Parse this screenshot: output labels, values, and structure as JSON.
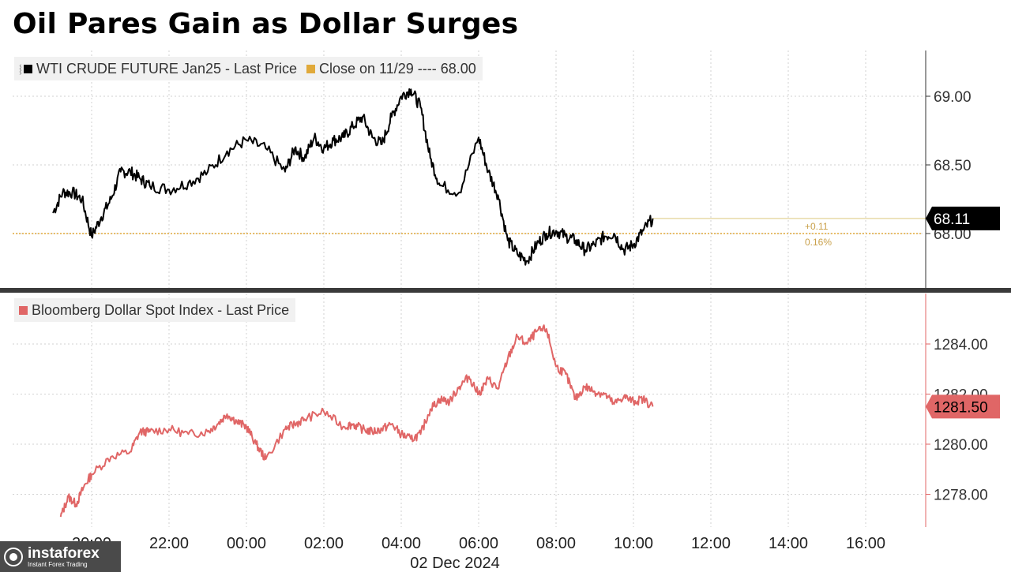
{
  "title": "Oil Pares Gain as Dollar Surges",
  "x_axis": {
    "tick_labels": [
      "20:00",
      "22:00",
      "00:00",
      "02:00",
      "04:00",
      "06:00",
      "08:00",
      "10:00",
      "12:00",
      "14:00",
      "16:00"
    ],
    "date_label": "02 Dec 2024"
  },
  "colors": {
    "oil": "#000000",
    "close_ref": "#e0a93a",
    "dollar": "#e06666",
    "grid": "#cfcfcf"
  },
  "chart_data": [
    {
      "type": "line",
      "panel": "top",
      "legend": [
        {
          "label": "WTI CRUDE FUTURE Jan25 - Last Price",
          "color": "#000000",
          "icon": "pin-icon"
        },
        {
          "label": "Close on 11/29 ---- 68.00",
          "color": "#e0a93a"
        }
      ],
      "ylim": [
        67.55,
        69.3
      ],
      "yticks": [
        "69.00",
        "68.50",
        "68.00"
      ],
      "last_value_label": "68.11",
      "change_labels": [
        "+0.11",
        "0.16%"
      ],
      "reference_line": {
        "name": "Close on 11/29",
        "value": 68.0
      },
      "series": [
        {
          "x": [
            -1.0,
            -0.75,
            -0.5,
            -0.25,
            0.0,
            0.25,
            0.5,
            0.75,
            1.0,
            1.25,
            1.5,
            2.0,
            2.5,
            3.0,
            3.5,
            4.0,
            4.5,
            5.0,
            5.25,
            5.5,
            5.75,
            6.0,
            6.25,
            6.5,
            6.75,
            7.0,
            7.25,
            7.5,
            7.75,
            8.0,
            8.25,
            8.5,
            8.75,
            9.0,
            9.5,
            10.0,
            10.25,
            10.5,
            10.75,
            11.0,
            11.25,
            11.5,
            11.75,
            12.0,
            12.25,
            12.5,
            12.75,
            13.0,
            13.25,
            13.5,
            13.75,
            14.0,
            14.25,
            14.5
          ],
          "y": [
            68.15,
            68.3,
            68.3,
            68.25,
            67.98,
            68.12,
            68.25,
            68.45,
            68.45,
            68.4,
            68.35,
            68.32,
            68.37,
            68.45,
            68.6,
            68.68,
            68.62,
            68.45,
            68.62,
            68.55,
            68.7,
            68.62,
            68.68,
            68.7,
            68.78,
            68.85,
            68.7,
            68.65,
            68.85,
            69.0,
            69.05,
            68.92,
            68.55,
            68.35,
            68.3,
            68.7,
            68.45,
            68.28,
            67.95,
            67.85,
            67.8,
            67.92,
            68.0,
            68.02,
            67.98,
            67.95,
            67.88,
            67.92,
            67.98,
            68.0,
            67.88,
            67.92,
            68.02,
            68.11
          ]
        }
      ]
    },
    {
      "type": "line",
      "panel": "bottom",
      "legend": [
        {
          "label": "Bloomberg Dollar Spot Index - Last Price",
          "color": "#e06666"
        }
      ],
      "ylim": [
        1276.7,
        1285.6
      ],
      "yticks": [
        "1284.00",
        "1282.00",
        "1280.00",
        "1278.00"
      ],
      "last_value_label": "1281.50",
      "series": [
        {
          "x": [
            -0.8,
            -0.6,
            -0.4,
            -0.2,
            0.0,
            0.5,
            1.0,
            1.25,
            1.5,
            2.0,
            2.5,
            3.0,
            3.25,
            3.5,
            3.75,
            4.0,
            4.25,
            4.5,
            5.0,
            5.25,
            5.5,
            6.0,
            6.5,
            6.75,
            7.0,
            7.25,
            7.5,
            7.75,
            8.0,
            8.25,
            8.5,
            8.75,
            9.0,
            9.25,
            9.5,
            9.75,
            10.0,
            10.25,
            10.5,
            10.75,
            11.0,
            11.25,
            11.5,
            11.75,
            12.0,
            12.25,
            12.5,
            12.75,
            13.0,
            13.25,
            13.5,
            13.75,
            14.0,
            14.25,
            14.5
          ],
          "y": [
            1277.1,
            1277.9,
            1277.6,
            1278.3,
            1278.8,
            1279.5,
            1279.7,
            1280.5,
            1280.5,
            1280.6,
            1280.4,
            1280.5,
            1280.8,
            1281.2,
            1280.9,
            1280.7,
            1280.0,
            1279.4,
            1280.6,
            1280.8,
            1281.0,
            1281.3,
            1280.7,
            1280.8,
            1280.6,
            1280.5,
            1280.6,
            1280.8,
            1280.4,
            1280.2,
            1280.4,
            1281.4,
            1281.8,
            1281.7,
            1282.3,
            1282.7,
            1282.0,
            1282.6,
            1282.2,
            1283.4,
            1284.3,
            1284.0,
            1284.5,
            1284.6,
            1283.1,
            1282.8,
            1281.8,
            1282.3,
            1282.1,
            1282.0,
            1281.6,
            1281.9,
            1281.7,
            1281.8,
            1281.5
          ]
        }
      ]
    }
  ]
}
